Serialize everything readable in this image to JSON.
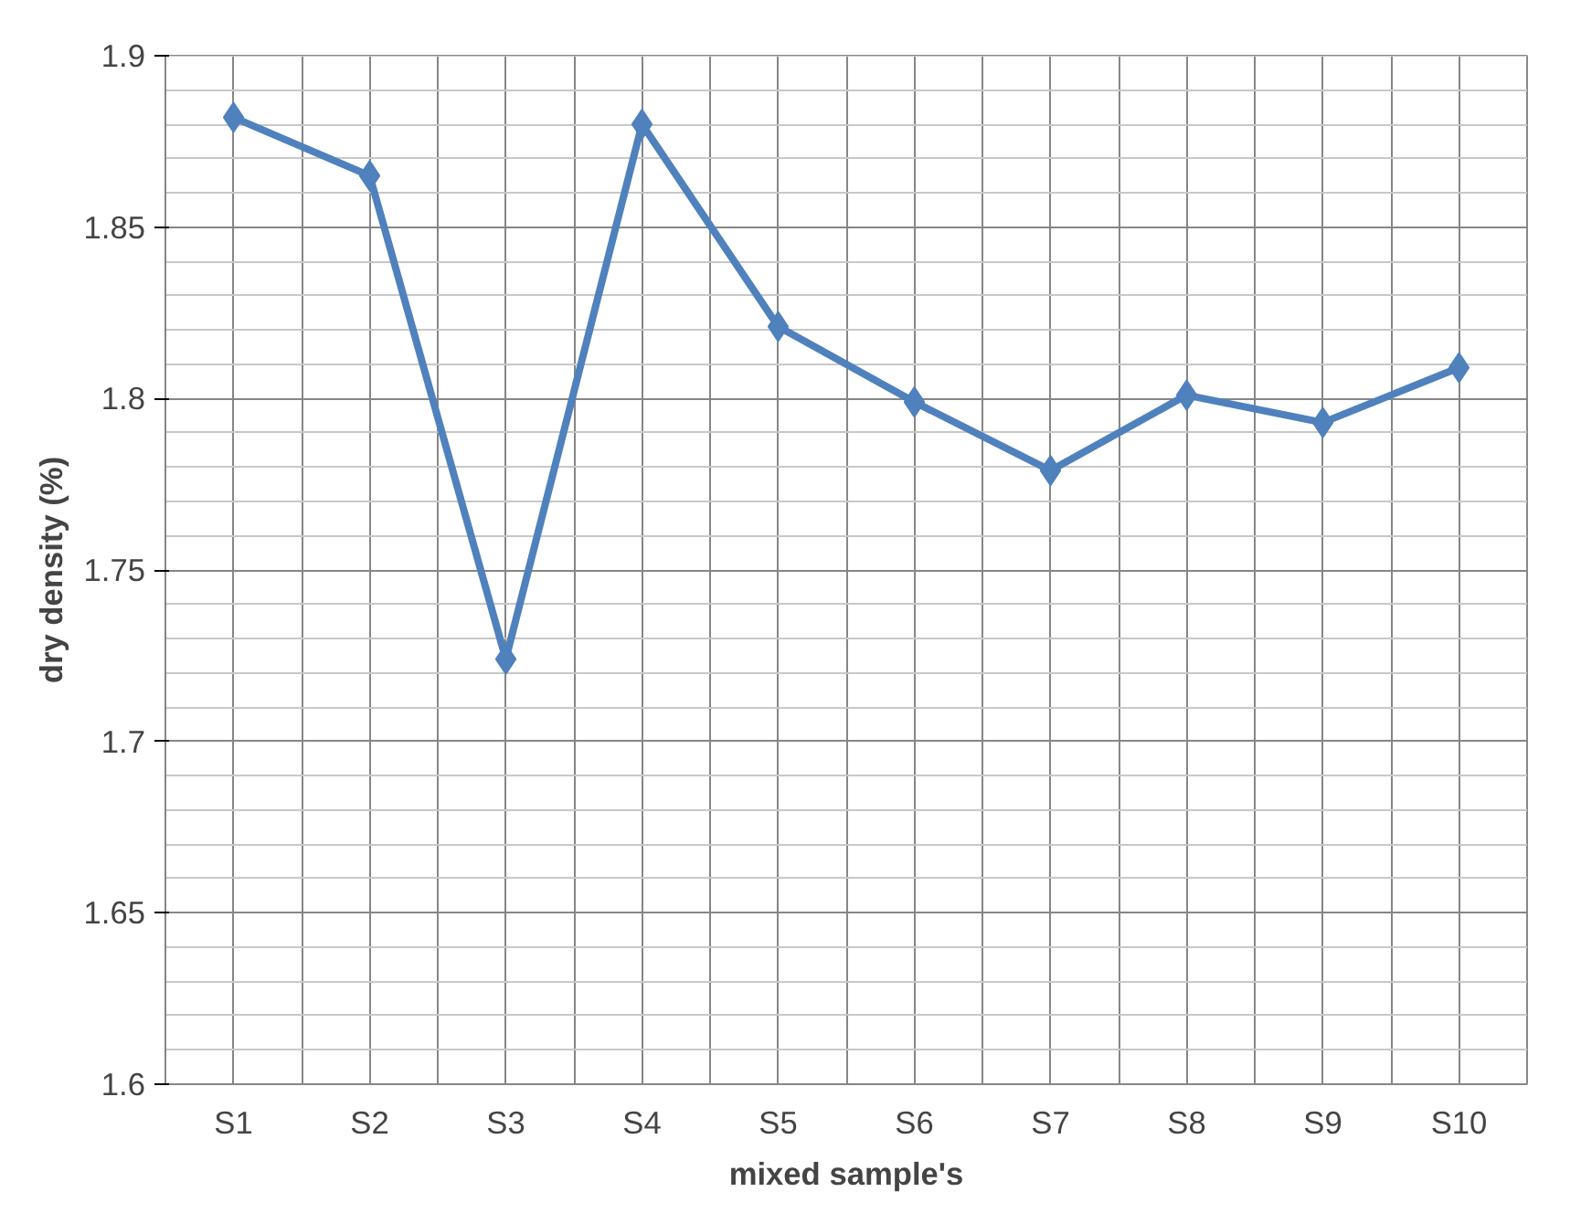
{
  "chart_data": {
    "type": "line",
    "xlabel": "mixed sample's",
    "ylabel": "dry density (%)",
    "categories": [
      "S1",
      "S2",
      "S3",
      "S4",
      "S5",
      "S6",
      "S7",
      "S8",
      "S9",
      "S10"
    ],
    "series": [
      {
        "color": "#4f81bd",
        "values": [
          1.882,
          1.865,
          1.724,
          1.88,
          1.821,
          1.799,
          1.779,
          1.801,
          1.793,
          1.809
        ]
      }
    ],
    "ylim": [
      1.6,
      1.9
    ],
    "yticks": [
      1.6,
      1.65,
      1.7,
      1.75,
      1.8,
      1.85,
      1.9
    ],
    "grid": true,
    "marker": "diamond",
    "line_style": "solid"
  }
}
